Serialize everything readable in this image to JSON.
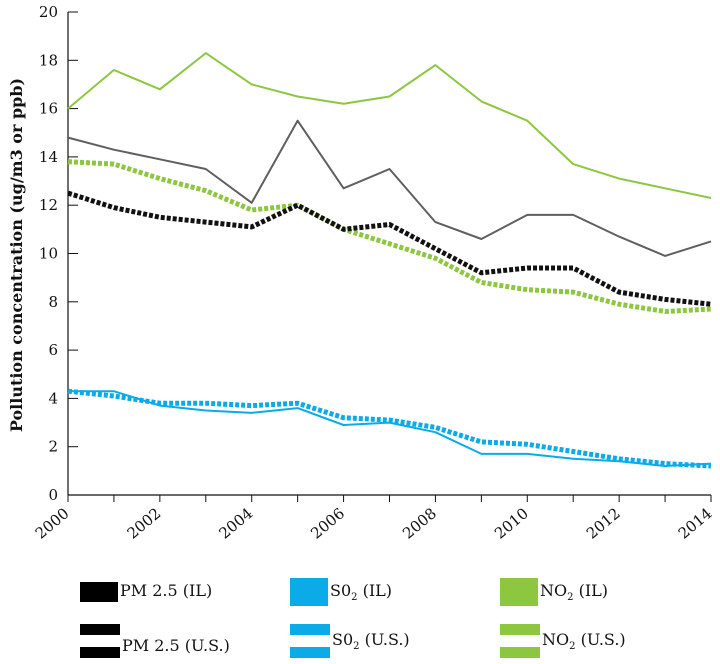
{
  "chart_data": {
    "type": "line",
    "title": "",
    "xlabel": "",
    "ylabel": "Pollution concentration (ug/m3 or ppb)",
    "xlim": [
      2000,
      2014
    ],
    "ylim": [
      0,
      20
    ],
    "x_ticks": [
      2000,
      2002,
      2004,
      2006,
      2008,
      2010,
      2012,
      2014
    ],
    "y_ticks": [
      0,
      2,
      4,
      6,
      8,
      10,
      12,
      14,
      16,
      18,
      20
    ],
    "x": [
      2000,
      2001,
      2002,
      2003,
      2004,
      2005,
      2006,
      2007,
      2008,
      2009,
      2010,
      2011,
      2012,
      2013,
      2014
    ],
    "series": [
      {
        "name": "NO2 (IL)",
        "color": "#8dc63f",
        "style": "solid",
        "values": [
          16.0,
          17.6,
          16.8,
          18.3,
          17.0,
          16.5,
          16.2,
          16.5,
          17.8,
          16.3,
          15.5,
          13.7,
          13.1,
          12.7,
          12.3
        ]
      },
      {
        "name": "Unlabeled gray line",
        "color": "#5f5f5f",
        "style": "solid",
        "values": [
          14.8,
          14.3,
          13.9,
          13.5,
          12.1,
          15.5,
          12.7,
          13.5,
          11.3,
          10.6,
          11.6,
          11.6,
          10.7,
          9.9,
          10.5
        ]
      },
      {
        "name": "NO2 (U.S.)",
        "color": "#8dc63f",
        "style": "dotted",
        "values": [
          13.8,
          13.7,
          13.1,
          12.6,
          11.8,
          12.0,
          11.0,
          10.4,
          9.8,
          8.8,
          8.5,
          8.4,
          7.9,
          7.6,
          7.7
        ]
      },
      {
        "name": "PM 2.5 (U.S.)",
        "color": "#111111",
        "style": "dotted",
        "values": [
          12.5,
          11.9,
          11.5,
          11.3,
          11.1,
          12.0,
          11.0,
          11.2,
          10.2,
          9.2,
          9.4,
          9.4,
          8.4,
          8.1,
          7.9
        ]
      },
      {
        "name": "S02 (IL)",
        "color": "#0aabe6",
        "style": "solid",
        "values": [
          4.3,
          4.3,
          3.7,
          3.5,
          3.4,
          3.6,
          2.9,
          3.0,
          2.6,
          1.7,
          1.7,
          1.5,
          1.4,
          1.2,
          1.3
        ]
      },
      {
        "name": "S02 (U.S.)",
        "color": "#0aabe6",
        "style": "dotted",
        "values": [
          4.3,
          4.1,
          3.8,
          3.8,
          3.7,
          3.8,
          3.2,
          3.1,
          2.8,
          2.2,
          2.1,
          1.8,
          1.5,
          1.3,
          1.2
        ]
      }
    ],
    "legend": {
      "placement": "bottom",
      "items": [
        {
          "main": "PM 2.5 (IL)",
          "sub": "",
          "rest": "",
          "color": "#000000",
          "style": "solid"
        },
        {
          "main": "S0",
          "sub": "2",
          "rest": " (IL)",
          "color": "#0aabe6",
          "style": "solid"
        },
        {
          "main": "NO",
          "sub": "2",
          "rest": " (IL)",
          "color": "#8dc63f",
          "style": "solid"
        },
        {
          "main": "PM 2.5 (U.S.)",
          "sub": "",
          "rest": "",
          "color": "#000000",
          "style": "double"
        },
        {
          "main": "S0",
          "sub": "2",
          "rest": " (U.S.)",
          "color": "#0aabe6",
          "style": "double"
        },
        {
          "main": "NO",
          "sub": "2",
          "rest": " (U.S.)",
          "color": "#8dc63f",
          "style": "double"
        }
      ]
    },
    "grid": false
  }
}
